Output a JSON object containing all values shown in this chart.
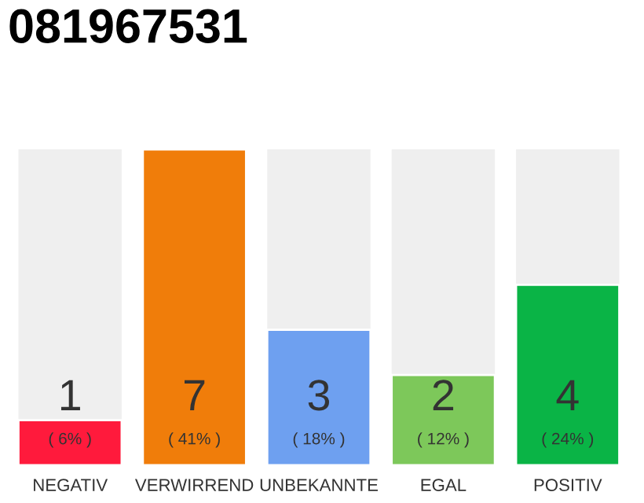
{
  "chart_data": {
    "type": "bar",
    "title": "081967531",
    "categories": [
      "NEGATIV",
      "VERWIRREND",
      "UNBEKANNTE",
      "EGAL",
      "POSITIV"
    ],
    "values": [
      1,
      7,
      3,
      2,
      4
    ],
    "colors": [
      "#ff1a3c",
      "#f07d0a",
      "#6ea0f0",
      "#7dc85a",
      "#0ab446"
    ],
    "data_labels": true,
    "ylim": [
      0,
      7
    ],
    "tick_labels": "x",
    "grid": false,
    "legend": false,
    "annotations": [
      "( 6% )",
      "( 41% )",
      "( 18% )",
      "( 12% )",
      "( 24% )"
    ]
  }
}
